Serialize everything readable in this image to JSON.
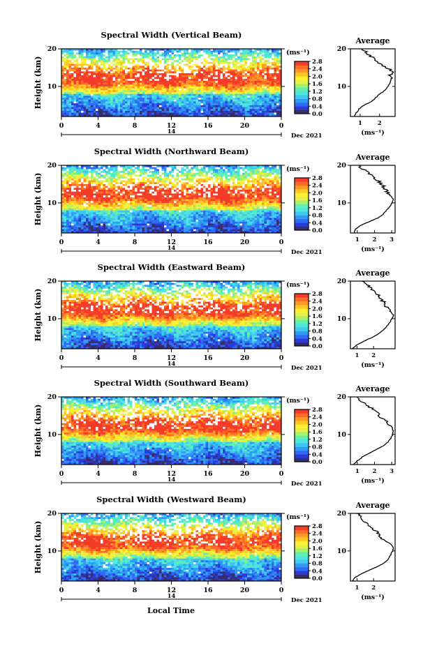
{
  "figure": {
    "xlabel": "Local Time",
    "date_label": "Dec 2021",
    "date_day": "14",
    "avg_title": "Average",
    "ylabel": "Height (km)",
    "unit_label": "(ms⁻¹)"
  },
  "colorbar": {
    "ticks": [
      "0.0",
      "0.4",
      "0.8",
      "1.2",
      "1.6",
      "2.0",
      "2.4",
      "2.8"
    ],
    "colors": [
      "#3a2d6b",
      "#2b3bd6",
      "#2f6bf5",
      "#2f9bf5",
      "#3fc8f0",
      "#4fe4e0",
      "#5ef0b0",
      "#a6f06a",
      "#e6f04a",
      "#fff030",
      "#ffc826",
      "#ff9a24",
      "#ff6a26",
      "#f53c2a"
    ],
    "range": [
      0,
      2.8
    ]
  },
  "chart_data": [
    {
      "type": "heatmap",
      "title": "Spectral Width (Vertical Beam)",
      "xlabel": "Local Time",
      "ylabel": "Height (km)",
      "x_ticks": [
        "0",
        "4",
        "8",
        "12",
        "16",
        "20",
        "0"
      ],
      "y_ticks": [
        "10",
        "20"
      ],
      "xlim": [
        0,
        24
      ],
      "ylim": [
        2,
        20
      ],
      "avg": {
        "title": "Average",
        "xlabel": "(ms⁻¹)",
        "x_ticks": [
          "1",
          "2"
        ],
        "y_ticks": [
          "10",
          "20"
        ],
        "xlim": [
          0.5,
          2.8
        ],
        "height": [
          2,
          3,
          4,
          5,
          6,
          7,
          8,
          9,
          10,
          11,
          12,
          13,
          14,
          15,
          16,
          17,
          18,
          19,
          20
        ],
        "value": [
          0.7,
          0.8,
          0.95,
          1.2,
          1.6,
          1.8,
          2.0,
          2.3,
          2.45,
          2.55,
          2.6,
          2.5,
          2.7,
          2.3,
          2.1,
          1.8,
          1.6,
          1.3,
          1.1
        ]
      }
    },
    {
      "type": "heatmap",
      "title": "Spectral Width (Northward Beam)",
      "xlabel": "Local Time",
      "ylabel": "Height (km)",
      "x_ticks": [
        "0",
        "4",
        "8",
        "12",
        "16",
        "20",
        "0"
      ],
      "y_ticks": [
        "10",
        "20"
      ],
      "xlim": [
        0,
        24
      ],
      "ylim": [
        2,
        20
      ],
      "avg": {
        "title": "Average",
        "xlabel": "(ms⁻¹)",
        "x_ticks": [
          "1",
          "2",
          "3"
        ],
        "y_ticks": [
          "10",
          "20"
        ],
        "xlim": [
          0.6,
          3.2
        ],
        "height": [
          2,
          3,
          4,
          5,
          6,
          7,
          8,
          9,
          10,
          11,
          12,
          13,
          14,
          15,
          16,
          17,
          18,
          19,
          20
        ],
        "value": [
          0.8,
          0.9,
          1.2,
          1.7,
          2.2,
          2.5,
          2.7,
          2.9,
          3.0,
          3.1,
          2.9,
          2.7,
          2.6,
          2.4,
          2.2,
          1.9,
          1.6,
          1.3,
          1.1
        ]
      }
    },
    {
      "type": "heatmap",
      "title": "Spectral Width (Eastward Beam)",
      "xlabel": "Local Time",
      "ylabel": "Height (km)",
      "x_ticks": [
        "0",
        "4",
        "8",
        "12",
        "16",
        "20",
        "0"
      ],
      "y_ticks": [
        "10",
        "20"
      ],
      "xlim": [
        0,
        24
      ],
      "ylim": [
        2,
        20
      ],
      "avg": {
        "title": "Average",
        "xlabel": "(ms⁻¹)",
        "x_ticks": [
          "1",
          "2"
        ],
        "y_ticks": [
          "10",
          "20"
        ],
        "xlim": [
          0.6,
          3.3
        ],
        "height": [
          2,
          3,
          4,
          5,
          6,
          7,
          8,
          9,
          10,
          11,
          12,
          13,
          14,
          15,
          16,
          17,
          18,
          19,
          20
        ],
        "value": [
          0.7,
          1.0,
          1.4,
          1.9,
          2.3,
          2.6,
          2.8,
          3.0,
          3.1,
          3.2,
          3.0,
          2.8,
          2.7,
          2.5,
          2.4,
          2.1,
          1.9,
          1.6,
          1.3
        ]
      }
    },
    {
      "type": "heatmap",
      "title": "Spectral Width (Southward Beam)",
      "xlabel": "Local Time",
      "ylabel": "Height (km)",
      "x_ticks": [
        "0",
        "4",
        "8",
        "12",
        "16",
        "20",
        "0"
      ],
      "y_ticks": [
        "10",
        "20"
      ],
      "xlim": [
        0,
        24
      ],
      "ylim": [
        2,
        20
      ],
      "avg": {
        "title": "Average",
        "xlabel": "(ms⁻¹)",
        "x_ticks": [
          "1",
          "2",
          "3"
        ],
        "y_ticks": [
          "10",
          "20"
        ],
        "xlim": [
          0.6,
          3.2
        ],
        "height": [
          2,
          3,
          4,
          5,
          6,
          7,
          8,
          9,
          10,
          11,
          12,
          13,
          14,
          15,
          16,
          17,
          18,
          19,
          20
        ],
        "value": [
          0.8,
          1.0,
          1.3,
          1.7,
          2.1,
          2.5,
          2.8,
          2.95,
          3.05,
          3.1,
          3.0,
          2.8,
          2.5,
          2.3,
          2.1,
          1.8,
          1.5,
          1.2,
          1.0
        ]
      }
    },
    {
      "type": "heatmap",
      "title": "Spectral Width (Westward Beam)",
      "xlabel": "Local Time",
      "ylabel": "Height (km)",
      "x_ticks": [
        "0",
        "4",
        "8",
        "12",
        "16",
        "20",
        "0"
      ],
      "y_ticks": [
        "10",
        "20"
      ],
      "xlim": [
        0,
        24
      ],
      "ylim": [
        2,
        20
      ],
      "avg": {
        "title": "Average",
        "xlabel": "(ms⁻¹)",
        "x_ticks": [
          "1",
          "2"
        ],
        "y_ticks": [
          "10",
          "20"
        ],
        "xlim": [
          0.6,
          3.3
        ],
        "height": [
          2,
          3,
          4,
          5,
          6,
          7,
          8,
          9,
          10,
          11,
          12,
          13,
          14,
          15,
          16,
          17,
          18,
          19,
          20
        ],
        "value": [
          0.7,
          0.9,
          1.3,
          1.8,
          2.3,
          2.7,
          2.9,
          3.05,
          3.15,
          3.2,
          3.0,
          2.6,
          2.3,
          2.2,
          1.9,
          1.6,
          1.4,
          1.2,
          1.0
        ]
      }
    }
  ]
}
